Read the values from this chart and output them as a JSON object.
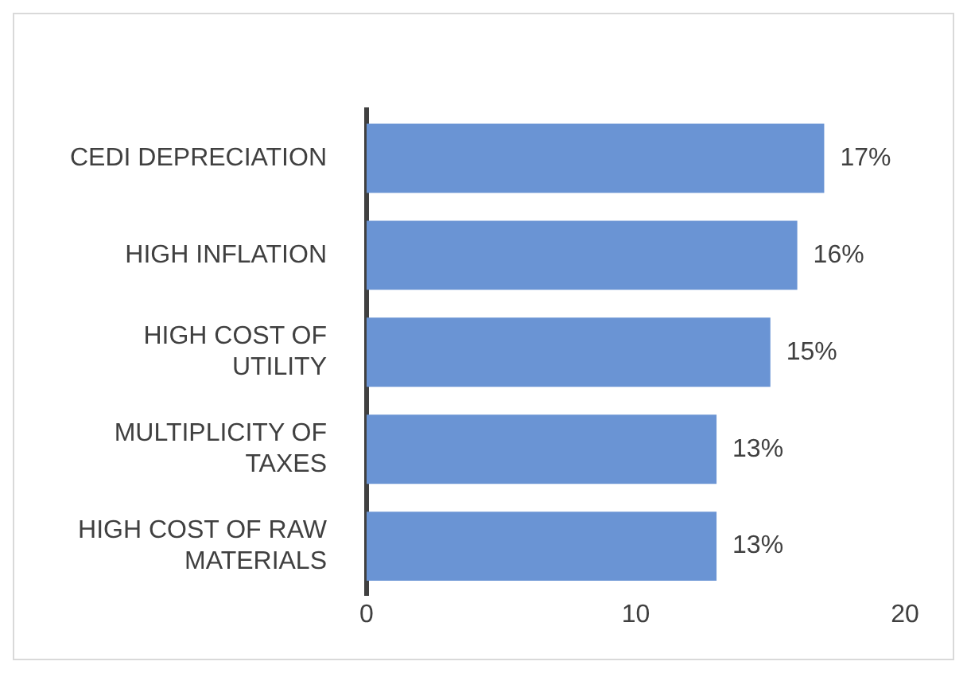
{
  "chart_data": {
    "type": "bar",
    "orientation": "horizontal",
    "categories": [
      [
        "CEDI DEPRECIATION"
      ],
      [
        "HIGH INFLATION"
      ],
      [
        "HIGH COST OF",
        "UTILITY"
      ],
      [
        "MULTIPLICITY OF",
        "TAXES"
      ],
      [
        "HIGH COST OF RAW",
        "MATERIALS"
      ]
    ],
    "values": [
      17,
      16,
      15,
      13,
      13
    ],
    "value_labels": [
      "17%",
      "16%",
      "15%",
      "13%",
      "13%"
    ],
    "color": "#6a94d4",
    "xlim": [
      0,
      20
    ],
    "xticks": [
      0,
      10,
      20
    ],
    "grid": false,
    "legend": false
  }
}
